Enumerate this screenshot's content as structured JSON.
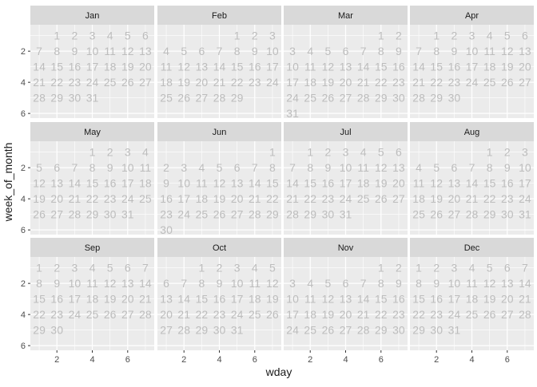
{
  "chart_data": {
    "type": "scatter",
    "mark": "text",
    "xlabel": "wday",
    "ylabel": "week_of_month",
    "xlim": [
      0.5,
      7.5
    ],
    "ylim": [
      6.3,
      0.3
    ],
    "y_reversed": true,
    "x_ticks": [
      2,
      4,
      6
    ],
    "y_ticks": [
      2,
      4,
      6
    ],
    "grid": true,
    "layout": "facet_wrap 3 rows x 4 columns",
    "colors": {
      "panel_bg": "#ebebeb",
      "strip_bg": "#d9d9d9",
      "grid": "#ffffff",
      "day_text": "#bdbdbd",
      "axis_text": "#4d4d4d",
      "title_text": "#1a1a1a"
    },
    "panels": [
      {
        "month": "Jan",
        "start_wday": 2,
        "days": 31
      },
      {
        "month": "Feb",
        "start_wday": 5,
        "days": 29
      },
      {
        "month": "Mar",
        "start_wday": 6,
        "days": 31
      },
      {
        "month": "Apr",
        "start_wday": 2,
        "days": 30
      },
      {
        "month": "May",
        "start_wday": 4,
        "days": 31
      },
      {
        "month": "Jun",
        "start_wday": 7,
        "days": 30
      },
      {
        "month": "Jul",
        "start_wday": 2,
        "days": 31
      },
      {
        "month": "Aug",
        "start_wday": 5,
        "days": 31
      },
      {
        "month": "Sep",
        "start_wday": 1,
        "days": 30
      },
      {
        "month": "Oct",
        "start_wday": 3,
        "days": 31
      },
      {
        "month": "Nov",
        "start_wday": 6,
        "days": 30
      },
      {
        "month": "Dec",
        "start_wday": 1,
        "days": 31
      }
    ]
  }
}
